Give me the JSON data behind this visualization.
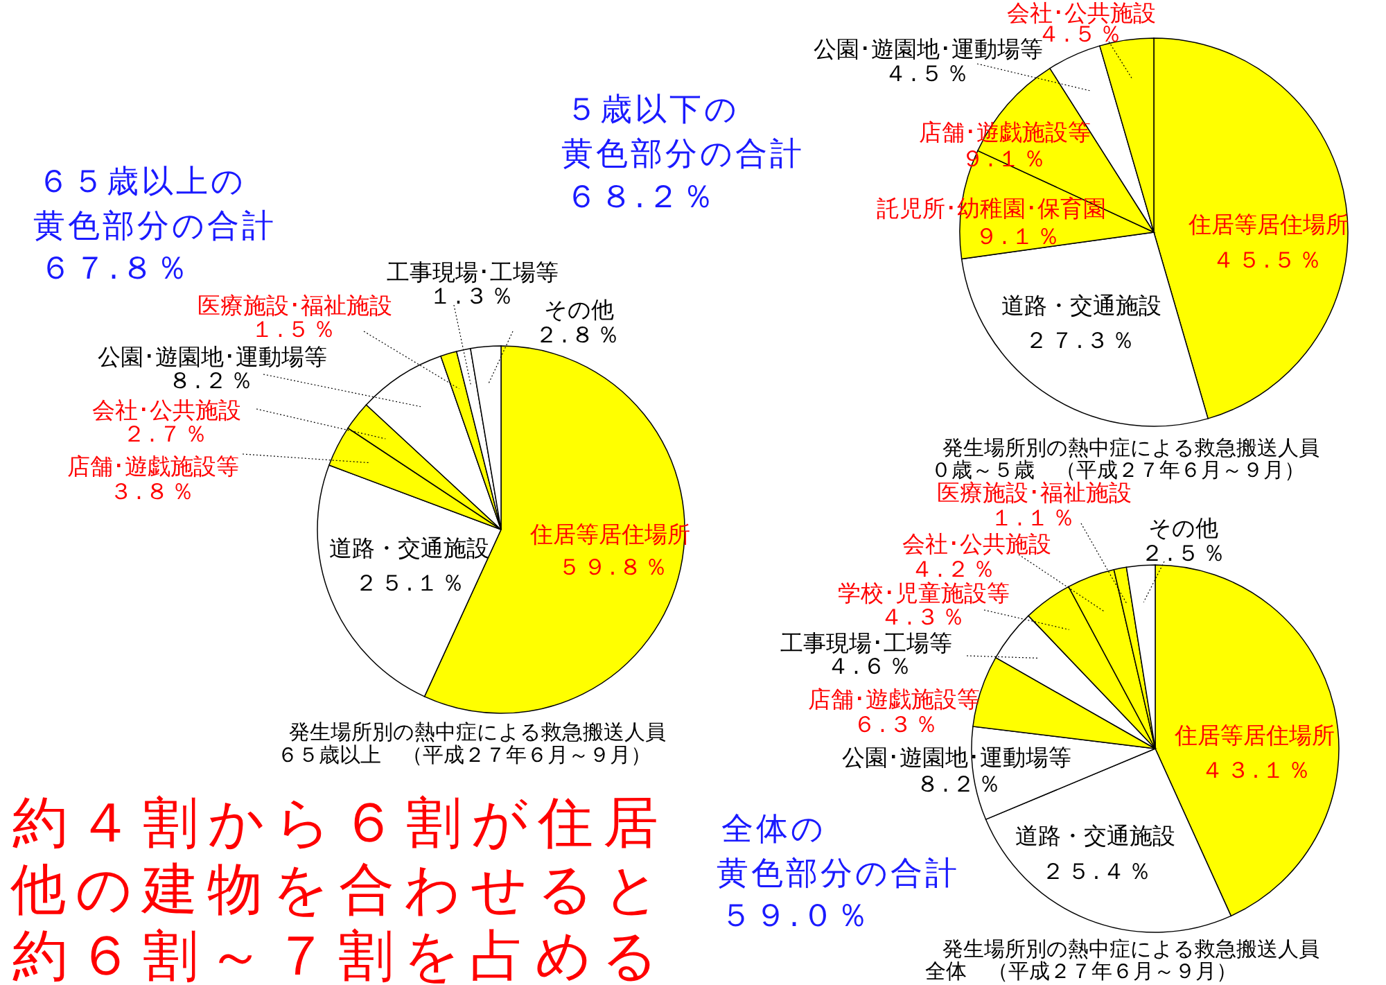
{
  "chart_data": [
    {
      "type": "pie",
      "title": "発生場所別の熱中症による救急搬送人員",
      "subtitle": "０歳～５歳　（平成２７年６月～９月）",
      "categories": [
        "住居等居住場所",
        "道路・交通施設",
        "託児所･幼稚園･保育園",
        "店舗･遊戯施設等",
        "公園･遊園地･運動場等",
        "会社･公共施設"
      ],
      "values": [
        45.5,
        27.3,
        9.1,
        9.1,
        4.5,
        4.5
      ],
      "colors": [
        "#ffff00",
        "#ffffff",
        "#ffff00",
        "#ffff00",
        "#ffffff",
        "#ffff00"
      ],
      "value_labels": [
        "４５.５％",
        "２７.３％",
        "９.１％",
        "９.１％",
        "４.５％",
        "４.５％"
      ],
      "annotations": [
        "５歳以下の",
        "黄色部分の合計",
        "６８.２％"
      ]
    },
    {
      "type": "pie",
      "title": "発生場所別の熱中症による救急搬送人員",
      "subtitle": "６５歳以上　（平成２７年６月～９月）",
      "categories": [
        "住居等居住場所",
        "道路・交通施設",
        "店舗･遊戯施設等",
        "会社･公共施設",
        "公園･遊園地･運動場等",
        "医療施設･福祉施設",
        "工事現場･工場等",
        "その他"
      ],
      "values": [
        59.8,
        25.1,
        3.8,
        2.7,
        8.2,
        1.5,
        1.3,
        2.8
      ],
      "colors": [
        "#ffff00",
        "#ffffff",
        "#ffff00",
        "#ffff00",
        "#ffffff",
        "#ffff00",
        "#ffffff",
        "#ffffff"
      ],
      "value_labels": [
        "５９.８％",
        "２５.１％",
        "３.８％",
        "２.７％",
        "８.２％",
        "１.５％",
        "１.３％",
        "２.８％"
      ],
      "annotations": [
        "６５歳以上の",
        "黄色部分の合計",
        "６７.８％",
        "約４割から６割が住居",
        "他の建物を合わせると",
        "約６割～７割を占める"
      ]
    },
    {
      "type": "pie",
      "title": "発生場所別の熱中症による救急搬送人員",
      "subtitle": "全体　（平成２７年６月～９月）",
      "categories": [
        "住居等居住場所",
        "道路・交通施設",
        "公園･遊園地･運動場等",
        "店舗･遊戯施設等",
        "工事現場･工場等",
        "学校･児童施設等",
        "会社･公共施設",
        "医療施設･福祉施設",
        "その他"
      ],
      "values": [
        43.1,
        25.4,
        8.2,
        6.3,
        4.6,
        4.3,
        4.2,
        1.1,
        2.5
      ],
      "colors": [
        "#ffff00",
        "#ffffff",
        "#ffffff",
        "#ffff00",
        "#ffffff",
        "#ffff00",
        "#ffff00",
        "#ffff00",
        "#ffffff"
      ],
      "value_labels": [
        "４３.１％",
        "２５.４％",
        "８.２％",
        "６.３％",
        "４.６％",
        "４.３％",
        "４.２％",
        "１.１％",
        "２.５％"
      ],
      "annotations": [
        "全体の",
        "黄色部分の合計",
        "５９.０％"
      ]
    }
  ]
}
